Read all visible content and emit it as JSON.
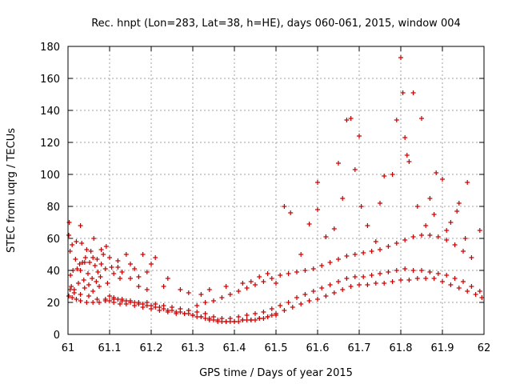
{
  "chart_data": {
    "type": "scatter",
    "title": "Rec. hnpt (Lon=283, Lat=38, h=HE), days 060-061, 2015, window 004",
    "xlabel": "GPS time / Days of year 2015",
    "ylabel": "STEC from uqrg / TECUs",
    "xlim": [
      61,
      62
    ],
    "ylim": [
      0,
      180
    ],
    "xticks": [
      "61",
      "61.1",
      "61.2",
      "61.3",
      "61.4",
      "61.5",
      "61.6",
      "61.7",
      "61.8",
      "61.9",
      "62"
    ],
    "yticks": [
      "0",
      "20",
      "40",
      "60",
      "80",
      "100",
      "120",
      "140",
      "160",
      "180"
    ],
    "grid": true,
    "marker": "plus",
    "color": "#cc0000",
    "x": [
      61.002,
      61.003,
      61.005,
      61.006,
      61.008,
      61.01,
      61.012,
      61.015,
      61.018,
      61.02,
      61.022,
      61.025,
      61.028,
      61.03,
      61.033,
      61.035,
      61.038,
      61.04,
      61.042,
      61.045,
      61.048,
      61.05,
      61.052,
      61.055,
      61.058,
      61.06,
      61.062,
      61.065,
      61.068,
      61.07,
      61.072,
      61.075,
      61.078,
      61.08,
      61.085,
      61.09,
      61.092,
      61.095,
      61.1,
      61.105,
      61.11,
      61.12,
      61.125,
      61.13,
      61.14,
      61.15,
      61.16,
      61.17,
      61.18,
      61.19,
      61.2,
      61.21,
      61.002,
      61.01,
      61.02,
      61.03,
      61.045,
      61.06,
      61.075,
      61.09,
      61.1,
      61.11,
      61.125,
      61.14,
      61.16,
      61.18,
      61.2,
      61.22,
      61.24,
      61.26,
      61.28,
      61.3,
      61.32,
      61.34,
      61.36,
      61.38,
      61.4,
      61.42,
      61.44,
      61.46,
      61.48,
      61.5,
      61.52,
      61.54,
      61.56,
      61.58,
      61.6,
      61.62,
      61.64,
      61.66,
      61.68,
      61.7,
      61.72,
      61.74,
      61.76,
      61.78,
      61.8,
      61.82,
      61.84,
      61.86,
      61.88,
      61.9,
      61.92,
      61.94,
      61.96,
      61.98,
      61.995,
      61.005,
      61.015,
      61.03,
      61.05,
      61.07,
      61.09,
      61.11,
      61.13,
      61.15,
      61.17,
      61.19,
      61.21,
      61.23,
      61.25,
      61.27,
      61.29,
      61.31,
      61.33,
      61.35,
      61.37,
      61.39,
      61.41,
      61.43,
      61.45,
      61.47,
      61.49,
      61.51,
      61.53,
      61.55,
      61.57,
      61.59,
      61.61,
      61.63,
      61.65,
      61.67,
      61.69,
      61.71,
      61.73,
      61.75,
      61.77,
      61.79,
      61.81,
      61.83,
      61.85,
      61.87,
      61.89,
      61.91,
      61.93,
      61.95,
      61.97,
      61.99,
      61.1,
      61.11,
      61.12,
      61.13,
      61.14,
      61.15,
      61.16,
      61.17,
      61.18,
      61.19,
      61.2,
      61.21,
      61.22,
      61.23,
      61.24,
      61.25,
      61.26,
      61.27,
      61.28,
      61.29,
      61.3,
      61.31,
      61.32,
      61.33,
      61.34,
      61.35,
      61.36,
      61.37,
      61.38,
      61.39,
      61.4,
      61.41,
      61.42,
      61.43,
      61.44,
      61.45,
      61.46,
      61.47,
      61.48,
      61.49,
      61.5,
      61.31,
      61.33,
      61.35,
      61.37,
      61.39,
      61.41,
      61.43,
      61.45,
      61.47,
      61.49,
      61.51,
      61.53,
      61.55,
      61.57,
      61.59,
      61.61,
      61.63,
      61.65,
      61.67,
      61.69,
      61.71,
      61.73,
      61.75,
      61.77,
      61.79,
      61.81,
      61.83,
      61.85,
      61.87,
      61.89,
      61.91,
      61.93,
      61.95,
      61.97,
      61.52,
      61.535,
      61.6,
      61.6,
      61.65,
      61.66,
      61.67,
      61.68,
      61.69,
      61.7,
      61.705,
      61.75,
      61.76,
      61.78,
      61.79,
      61.8,
      61.805,
      61.81,
      61.815,
      61.82,
      61.83,
      61.85,
      61.87,
      61.885,
      61.9,
      61.92,
      61.94,
      61.96,
      61.99,
      61.56,
      61.58,
      61.62,
      61.64,
      61.72,
      61.74,
      61.84,
      61.86,
      61.88,
      61.91,
      61.935,
      61.955,
      61.03,
      61.04,
      61.06,
      61.08,
      61.12,
      61.15,
      61.17,
      61.19,
      61.23,
      61.24,
      61.27,
      61.29,
      61.32,
      61.34,
      61.38,
      61.42,
      61.44,
      61.46,
      61.48,
      61.5
    ],
    "y": [
      62,
      70,
      52,
      37,
      30,
      56,
      40,
      28,
      47,
      58,
      41,
      32,
      44,
      68,
      57,
      45,
      34,
      29,
      48,
      53,
      38,
      31,
      45,
      52,
      35,
      27,
      60,
      43,
      33,
      47,
      39,
      30,
      36,
      53,
      50,
      41,
      55,
      32,
      48,
      42,
      38,
      46,
      35,
      39,
      50,
      44,
      41,
      36,
      50,
      39,
      44,
      48,
      24,
      23,
      22,
      21,
      20,
      20,
      20,
      21,
      21,
      20,
      19,
      19,
      18,
      17,
      16,
      15,
      14,
      13,
      13,
      12,
      11,
      10,
      9,
      8,
      8,
      9,
      9,
      10,
      11,
      13,
      15,
      17,
      19,
      21,
      22,
      24,
      26,
      28,
      30,
      31,
      31,
      32,
      32,
      33,
      34,
      34,
      35,
      35,
      35,
      33,
      31,
      29,
      27,
      25,
      23,
      28,
      26,
      25,
      24,
      22,
      22,
      22,
      21,
      21,
      20,
      20,
      19,
      18,
      17,
      16,
      15,
      14,
      13,
      11,
      10,
      10,
      11,
      12,
      13,
      14,
      16,
      18,
      20,
      23,
      25,
      27,
      29,
      31,
      33,
      35,
      36,
      36,
      37,
      38,
      39,
      40,
      41,
      40,
      40,
      39,
      38,
      37,
      35,
      33,
      30,
      27,
      24,
      23,
      22,
      22,
      21,
      20,
      20,
      19,
      19,
      18,
      18,
      17,
      17,
      16,
      15,
      15,
      14,
      14,
      13,
      13,
      12,
      11,
      11,
      10,
      9,
      9,
      8,
      8,
      8,
      8,
      8,
      8,
      9,
      9,
      9,
      9,
      10,
      10,
      11,
      12,
      12,
      18,
      20,
      21,
      23,
      25,
      27,
      29,
      31,
      33,
      35,
      37,
      38,
      39,
      40,
      41,
      43,
      45,
      47,
      49,
      50,
      51,
      52,
      53,
      55,
      57,
      59,
      61,
      62,
      62,
      61,
      59,
      56,
      52,
      48,
      80,
      76,
      95,
      78,
      107,
      85,
      134,
      135,
      103,
      124,
      80,
      82,
      99,
      100,
      134,
      173,
      151,
      123,
      112,
      108,
      151,
      135,
      85,
      101,
      97,
      70,
      82,
      95,
      65,
      50,
      69,
      61,
      66,
      68,
      58,
      80,
      68,
      75,
      65,
      77,
      60,
      40,
      45,
      48,
      44,
      42,
      35,
      30,
      28,
      30,
      35,
      28,
      26,
      25,
      28,
      30,
      32,
      33,
      36,
      38,
      32
    ]
  }
}
